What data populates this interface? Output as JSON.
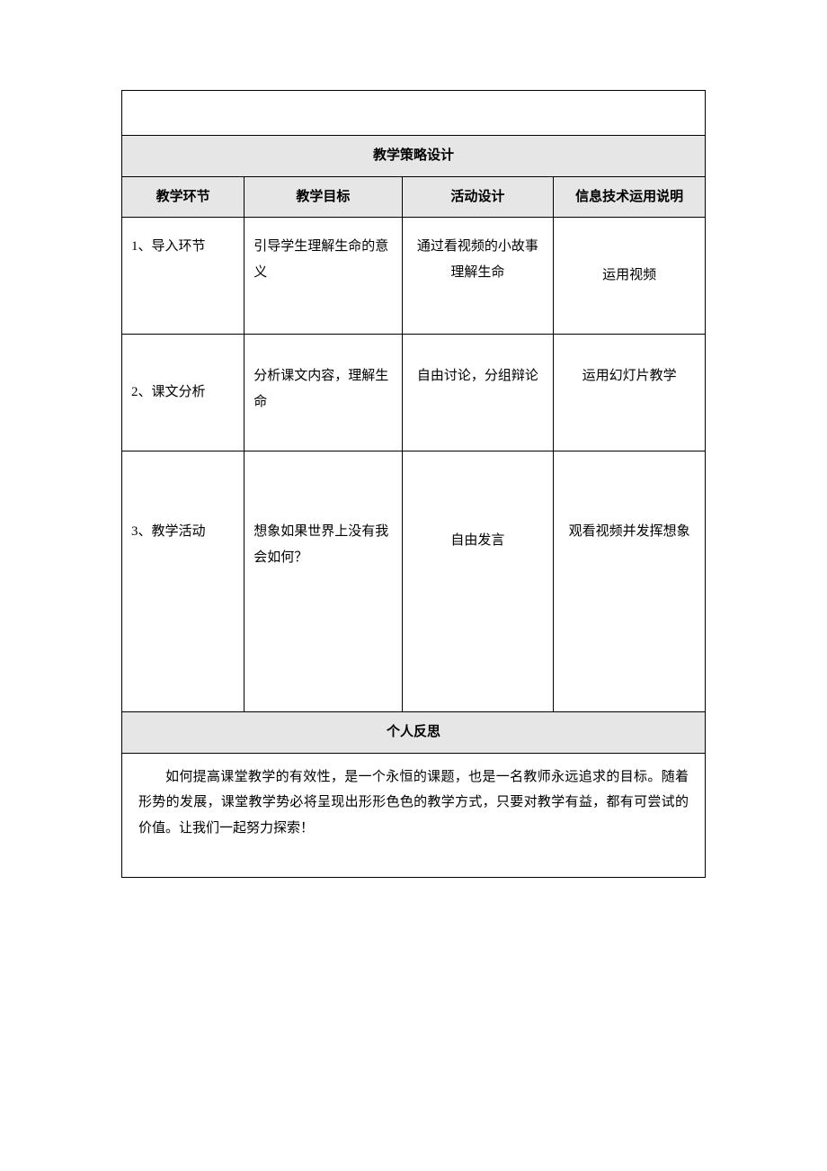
{
  "document": {
    "section1_title": "教学策略设计",
    "columns": {
      "col1": "教学环节",
      "col2": "教学目标",
      "col3": "活动设计",
      "col4": "信息技术运用说明"
    },
    "rows": [
      {
        "col1": "1、导入环节",
        "col2": "引导学生理解生命的意义",
        "col3": "通过看视频的小故事理解生命",
        "col4": "运用视频"
      },
      {
        "col1": "2、课文分析",
        "col2": "分析课文内容，理解生命",
        "col3": "自由讨论，分组辩论",
        "col4": "运用幻灯片教学"
      },
      {
        "col1": "3、教学活动",
        "col2": "想象如果世界上没有我会如何？",
        "col3": "自由发言",
        "col4": "观看视频并发挥想象"
      }
    ],
    "section2_title": "个人反思",
    "reflection_text": "如何提高课堂教学的有效性，是一个永恒的课题，也是一名教师永远追求的目标。随着形势的发展，课堂教学势必将呈现出形形色色的教学方式，只要对教学有益，都有可尝试的价值。让我们一起努力探索！",
    "colors": {
      "header_bg": "#e6e6e6",
      "border": "#000000",
      "background": "#ffffff",
      "text": "#000000"
    },
    "typography": {
      "font_family": "SimSun",
      "font_size": 15,
      "line_height": 1.9
    }
  }
}
